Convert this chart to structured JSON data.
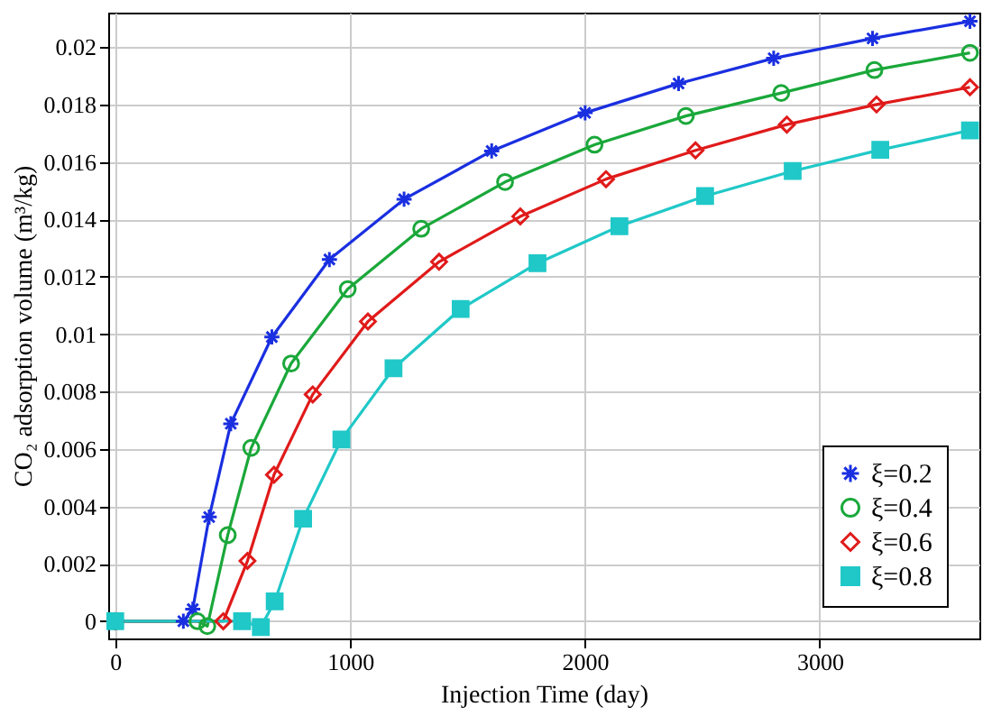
{
  "chart_data": {
    "type": "line",
    "xlabel": "Injection Time (day)",
    "ylabel": "CO₂ adsorption volume (m³/kg)",
    "xlim": [
      -30,
      3680
    ],
    "ylim": [
      -0.0006,
      0.0212
    ],
    "xticks": [
      0,
      1000,
      2000,
      3000
    ],
    "yticks": [
      0,
      0.002,
      0.004,
      0.006,
      0.008,
      0.01,
      0.012,
      0.014,
      0.016,
      0.018,
      0.02
    ],
    "grid": true,
    "legend": "bottom right",
    "line_style": "solid",
    "series": [
      {
        "name": "ξ=0.2",
        "color": "#1a2fe0",
        "marker": "cross",
        "x": [
          0,
          290,
          330,
          400,
          492,
          667,
          912,
          1230,
          1603,
          2001,
          2399,
          2804,
          3225,
          3640
        ],
        "values": [
          0,
          0,
          0.00042,
          0.00363,
          0.00688,
          0.0099,
          0.0126,
          0.0147,
          0.01638,
          0.01771,
          0.01873,
          0.01961,
          0.0203,
          0.0209
        ]
      },
      {
        "name": "ξ=0.4",
        "color": "#1aa83a",
        "marker": "circle",
        "x": [
          0,
          350,
          392,
          479,
          579,
          749,
          990,
          1303,
          1660,
          2041,
          2430,
          2836,
          3233,
          3640
        ],
        "values": [
          0,
          0,
          -0.00017,
          0.003,
          0.00604,
          0.00898,
          0.01157,
          0.01367,
          0.0153,
          0.0166,
          0.0176,
          0.0184,
          0.0192,
          0.0198
        ]
      },
      {
        "name": "ξ=0.6",
        "color": "#e01a1a",
        "marker": "diamond",
        "x": [
          0,
          460,
          563,
          676,
          841,
          1076,
          1379,
          1725,
          2090,
          2471,
          2860,
          3242,
          3640
        ],
        "values": [
          0,
          0,
          0.0021,
          0.0051,
          0.0079,
          0.01044,
          0.01252,
          0.0141,
          0.0154,
          0.0164,
          0.0173,
          0.018,
          0.0186
        ]
      },
      {
        "name": "ξ=0.8",
        "color": "#20c8c8",
        "marker": "square",
        "x": [
          0,
          540,
          620,
          679,
          800,
          963,
          1185,
          1471,
          1798,
          2147,
          2512,
          2885,
          3258,
          3640
        ],
        "values": [
          0,
          0,
          -0.0002,
          0.00069,
          0.00357,
          0.00633,
          0.00881,
          0.01088,
          0.01247,
          0.01376,
          0.01481,
          0.01568,
          0.01642,
          0.0171
        ]
      }
    ]
  }
}
